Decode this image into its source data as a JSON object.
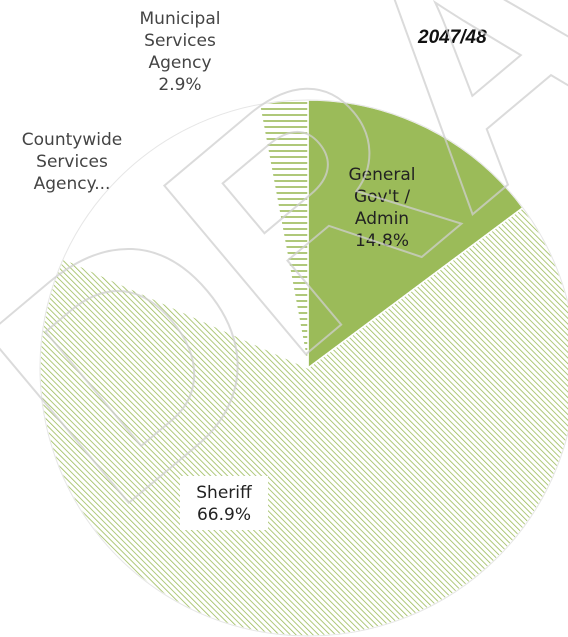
{
  "chart_data": {
    "type": "pie",
    "title": "2047/48",
    "watermark": "DRAFT",
    "slices": [
      {
        "label": "General Gov't / Admin",
        "label_lines": [
          "General",
          "Gov't /",
          "Admin"
        ],
        "value": 14.8,
        "value_text": "14.8%",
        "fill": "#9bbb59",
        "pattern": "solid"
      },
      {
        "label": "Sheriff",
        "label_lines": [
          "Sheriff"
        ],
        "value": 66.9,
        "value_text": "66.9%",
        "fill": "#9bbb59",
        "pattern": "diagonal-hatch"
      },
      {
        "label": "Countywide Services Agency...",
        "label_lines": [
          "Countywide",
          "Services",
          "Agency..."
        ],
        "value": 15.4,
        "value_text": "",
        "fill": "#ffffff",
        "pattern": "none"
      },
      {
        "label": "Municipal Services Agency",
        "label_lines": [
          "Municipal",
          "Services",
          "Agency"
        ],
        "value": 2.9,
        "value_text": "2.9%",
        "fill": "#9bbb59",
        "pattern": "horizontal-lines"
      }
    ]
  }
}
